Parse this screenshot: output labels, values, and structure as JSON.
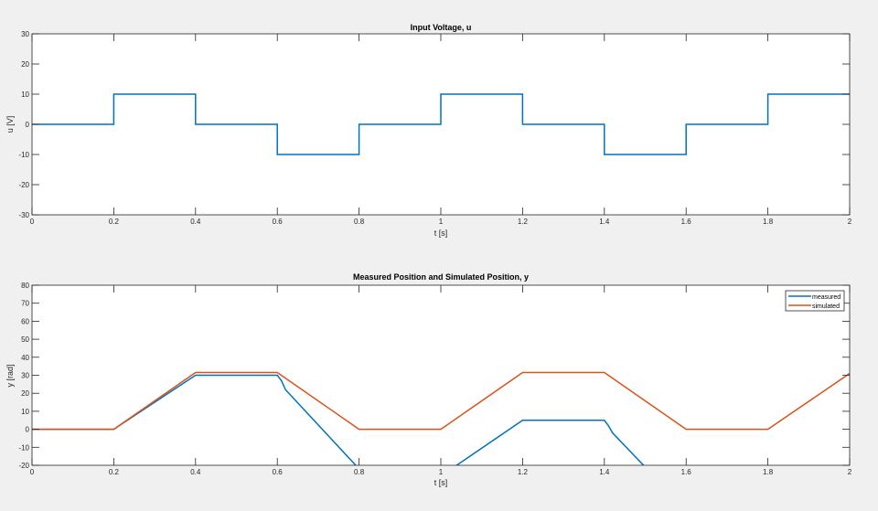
{
  "colors": {
    "measured": "#0072bd",
    "simulated": "#d95319",
    "axes": "#262626",
    "background": "#f0f0f0"
  },
  "chart_data": [
    {
      "type": "line",
      "title": "Input Voltage, u",
      "xlabel": "t [s]",
      "ylabel": "u [V]",
      "xlim": [
        0,
        2
      ],
      "ylim": [
        -30,
        30
      ],
      "xticks": [
        "0",
        "0.2",
        "0.4",
        "0.6",
        "0.8",
        "1",
        "1.2",
        "1.4",
        "1.6",
        "1.8",
        "2"
      ],
      "yticks": [
        "-30",
        "-20",
        "-10",
        "0",
        "10",
        "20",
        "30"
      ],
      "grid": false,
      "series": [
        {
          "color": "#0072bd",
          "x": [
            0,
            0.2,
            0.2,
            0.4,
            0.4,
            0.6,
            0.6,
            0.8,
            0.8,
            1.0,
            1.0,
            1.2,
            1.2,
            1.4,
            1.4,
            1.6,
            1.6,
            1.8,
            1.8,
            2.0
          ],
          "y": [
            0,
            0,
            10,
            10,
            0,
            0,
            -10,
            -10,
            0,
            0,
            10,
            10,
            0,
            0,
            -10,
            -10,
            0,
            0,
            10,
            10
          ]
        }
      ]
    },
    {
      "type": "line",
      "title": "Measured Position and Simulated Position, y",
      "xlabel": "t [s]",
      "ylabel": "y [rad]",
      "xlim": [
        0,
        2
      ],
      "ylim": [
        -20,
        80
      ],
      "xticks": [
        "0",
        "0.2",
        "0.4",
        "0.6",
        "0.8",
        "1",
        "1.2",
        "1.4",
        "1.6",
        "1.8",
        "2"
      ],
      "yticks": [
        "-20",
        "-10",
        "0",
        "10",
        "20",
        "30",
        "40",
        "50",
        "60",
        "70",
        "80"
      ],
      "grid": false,
      "legend": "top-right",
      "series": [
        {
          "name": "measured",
          "color": "#0072bd",
          "x": [
            0,
            0.2,
            0.4,
            0.6,
            0.61,
            0.62,
            0.8,
            1.0,
            1.2,
            1.4,
            1.41,
            1.42,
            1.5
          ],
          "y": [
            0,
            0,
            30,
            30,
            27,
            22,
            -22,
            -26,
            5,
            5,
            2,
            -2,
            -21
          ]
        },
        {
          "name": "simulated",
          "color": "#d95319",
          "x": [
            0,
            0.2,
            0.4,
            0.6,
            0.8,
            1.0,
            1.2,
            1.4,
            1.6,
            1.8,
            2.0
          ],
          "y": [
            0,
            0,
            31.5,
            31.5,
            0,
            0,
            31.5,
            31.5,
            0,
            0,
            31
          ]
        }
      ]
    }
  ]
}
